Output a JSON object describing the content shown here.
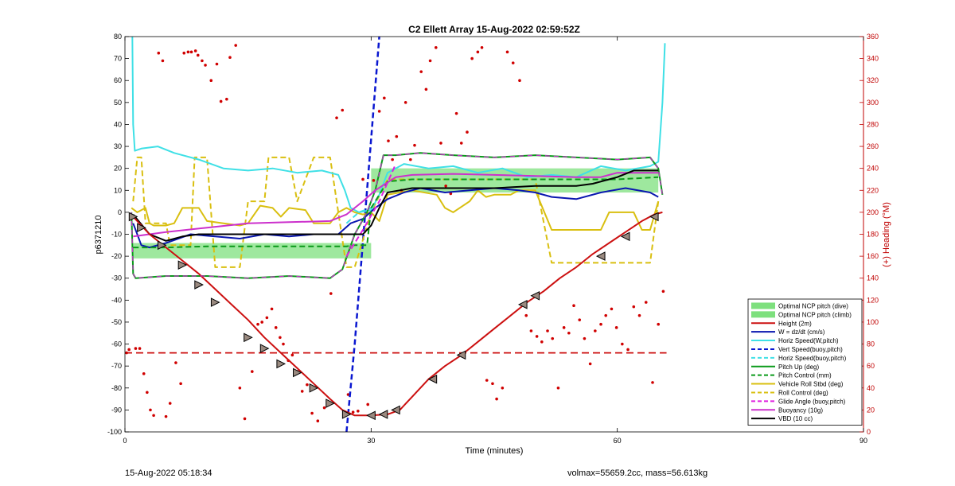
{
  "footer": {
    "left": "15-Aug-2022 05:18:34",
    "right": "volmax=55659.2cc, mass=56.613kg"
  },
  "chart_data": {
    "type": "line",
    "title": "C2 Ellett Array 15-Aug-2022 02:59:52Z",
    "xlabel": "Time (minutes)",
    "ylabel": "p6371210",
    "y2label": "(+) Heading (°M)",
    "xlim": [
      0,
      90
    ],
    "ylim": [
      -100,
      80
    ],
    "y2lim": [
      0,
      360
    ],
    "xticks": [
      0,
      30,
      60,
      90
    ],
    "yticks": [
      -100,
      -90,
      -80,
      -70,
      -60,
      -50,
      -40,
      -30,
      -20,
      -10,
      0,
      10,
      20,
      30,
      40,
      50,
      60,
      70,
      80
    ],
    "y2ticks": [
      0,
      20,
      40,
      60,
      80,
      100,
      120,
      140,
      160,
      180,
      200,
      220,
      240,
      260,
      280,
      300,
      320,
      340,
      360
    ],
    "grid": false,
    "legend_position": "bottom-right",
    "colors": {
      "axis_right": "#c00000",
      "heading_dots": "#d00000",
      "ncp_band": "#7ee07e",
      "height": "#cc1010",
      "w": "#0a17b0",
      "horiz_speed": "#3fe0e6",
      "vert_speed_buoy": "#0a17d0",
      "pitch_up": "#0a9a1a",
      "roll": "#d9bf10",
      "glide": "#e020e0",
      "buoyancy": "#cc30cc",
      "vbd": "#000000"
    },
    "series": [
      {
        "name": "Optimal NCP pitch (dive)",
        "kind": "band",
        "color": "#7ee07e",
        "x": [
          1,
          30
        ],
        "y_low": -21,
        "y_high": -14
      },
      {
        "name": "Optimal NCP pitch (climb)",
        "kind": "band",
        "color": "#7ee07e",
        "x": [
          30,
          65
        ],
        "y_low": 9,
        "y_high": 20
      },
      {
        "name": "Height (2m)",
        "style": "solid",
        "color": "#cc1010",
        "width": 2,
        "x": [
          1,
          3,
          5,
          7,
          9,
          11,
          13,
          15,
          17,
          19,
          21,
          23,
          25,
          26.5,
          28,
          30,
          32,
          33.5,
          35,
          37,
          39,
          41,
          43,
          45,
          47,
          49,
          51,
          53,
          55,
          57,
          59,
          61,
          63,
          64.5,
          65.5
        ],
        "y": [
          -2,
          -10,
          -16,
          -22,
          -28,
          -35,
          -42,
          -49,
          -57,
          -64,
          -71,
          -78,
          -85,
          -90,
          -92.5,
          -92.5,
          -92,
          -90,
          -84,
          -76,
          -70,
          -65,
          -59,
          -53,
          -47,
          -41,
          -36,
          -30,
          -25,
          -19,
          -14,
          -9,
          -4,
          -1,
          0
        ]
      },
      {
        "name": "W = dz/dt (cm/s)",
        "style": "solid",
        "color": "#0a17b0",
        "width": 2,
        "x": [
          1,
          2,
          3,
          5,
          8,
          11,
          14,
          17,
          20,
          23,
          26,
          27.5,
          29,
          30.5,
          32,
          34,
          36,
          39,
          42,
          45,
          48,
          50,
          52,
          55,
          58,
          61,
          64,
          65
        ],
        "y": [
          -5,
          -15,
          -16,
          -14,
          -10,
          -11,
          -12,
          -10,
          -11,
          -10,
          -10,
          -5,
          -3,
          2,
          6,
          9,
          11,
          9,
          10,
          11,
          10,
          9,
          7,
          6,
          9,
          11,
          9,
          7
        ]
      },
      {
        "name": "Horiz Speed(W,pitch)",
        "style": "solid",
        "color": "#3fe0e6",
        "width": 2,
        "x": [
          0.9,
          1,
          1.2,
          2,
          4,
          6,
          9,
          12,
          15,
          18,
          21,
          24,
          26,
          26.8,
          27.5,
          28.5,
          30,
          31,
          32,
          34,
          37,
          40,
          43,
          46,
          49,
          52,
          55,
          58,
          61,
          64,
          65,
          65.5,
          65.8
        ],
        "y": [
          80,
          40,
          28,
          29,
          30,
          27,
          24,
          20,
          19,
          20,
          18,
          19,
          17,
          10,
          2,
          0,
          1,
          8,
          18,
          22,
          20,
          21,
          18,
          20,
          16,
          17,
          16,
          21,
          19,
          21,
          23,
          50,
          77
        ]
      },
      {
        "name": "Vert Speed(buoy,pitch)",
        "style": "dashed",
        "color": "#0a17d0",
        "width": 2.5,
        "x": [
          27,
          28,
          29.5,
          31
        ],
        "y": [
          -100,
          -60,
          10,
          80
        ]
      },
      {
        "name": "Horiz Speed(buoy,pitch)",
        "style": "dashed",
        "color": "#3fe0e6",
        "width": 2,
        "x": [
          27,
          28.5,
          30
        ],
        "y": [
          -5,
          0,
          2
        ]
      },
      {
        "name": "Pitch Up (deg)",
        "style": "solid",
        "color": "#0a9a1a",
        "width": 2,
        "x": [
          0.8,
          1,
          1.3,
          5,
          10,
          15,
          20,
          25,
          26.5,
          28,
          29.5,
          30.5,
          31.5,
          33,
          36,
          40,
          45,
          50,
          55,
          60,
          64,
          65,
          65.5
        ],
        "y": [
          0,
          -28,
          -30,
          -29,
          -29,
          -30,
          -29,
          -30,
          -26,
          -10,
          0,
          10,
          26,
          26,
          27,
          26,
          25,
          26,
          25,
          24,
          25,
          20,
          8
        ]
      },
      {
        "name": "Pitch Control (mm)",
        "style": "dashed",
        "color": "#0a9a1a",
        "width": 2,
        "x": [
          1,
          5,
          10,
          15,
          20,
          25,
          27,
          28,
          29.5,
          30,
          32,
          35,
          40,
          45,
          50,
          55,
          60,
          65
        ],
        "y": [
          -16,
          -16,
          -15.5,
          -15.5,
          -15.5,
          -15.5,
          -15.5,
          -15,
          -15,
          2,
          14,
          15,
          15,
          15,
          15,
          15,
          15,
          16
        ]
      },
      {
        "name": "Vehicle Roll Stbd (deg)",
        "style": "solid",
        "color": "#d9bf10",
        "width": 2,
        "x": [
          0.8,
          1.5,
          2.5,
          3,
          3.5,
          5,
          6,
          7,
          9,
          10,
          12,
          14,
          15,
          16.5,
          18,
          19,
          20,
          22,
          23,
          25,
          26,
          27,
          28,
          29,
          30,
          31,
          32,
          35,
          38,
          39,
          40,
          42,
          43,
          44,
          45,
          47,
          48,
          50,
          52,
          55,
          58,
          59,
          60,
          62,
          63,
          64,
          65
        ],
        "y": [
          2,
          0,
          2,
          -5,
          -6,
          -6,
          -5,
          2,
          2,
          -4,
          -5,
          -6,
          -5,
          3,
          2,
          -2,
          2,
          1,
          -5,
          -5,
          0,
          2,
          0,
          -1,
          0,
          -4,
          8,
          10,
          8,
          2,
          0,
          5,
          10,
          7,
          8,
          8,
          10,
          10,
          -8,
          -8,
          -8,
          0,
          0,
          0,
          -8,
          -8,
          5
        ]
      },
      {
        "name": "Roll Control (deg)",
        "style": "dashed",
        "color": "#d9bf10",
        "width": 2,
        "x": [
          1,
          1.5,
          2,
          2.5,
          3,
          5,
          5.5,
          8,
          8.5,
          10,
          11,
          14,
          15,
          17,
          17.5,
          20,
          21,
          23,
          25,
          26,
          27,
          28,
          30,
          32,
          34,
          36,
          38,
          40,
          42,
          44,
          46,
          48,
          50,
          52,
          54,
          56,
          58,
          60,
          62,
          64,
          65
        ],
        "y": [
          5,
          25,
          25,
          -5,
          -5,
          -5,
          -15,
          -15,
          25,
          25,
          -25,
          -25,
          5,
          5,
          25,
          25,
          5,
          25,
          25,
          0,
          -25,
          -25,
          0,
          15,
          15,
          15,
          15,
          15,
          15,
          15,
          15,
          15,
          15,
          -23,
          -23,
          -23,
          -23,
          -23,
          -23,
          -23,
          5
        ]
      },
      {
        "name": "Glide Angle (buoy,pitch)",
        "style": "dashed",
        "color": "#e020e0",
        "width": 2,
        "x": [
          27,
          29,
          31,
          33
        ],
        "y": [
          -20,
          -8,
          5,
          22
        ]
      },
      {
        "name": "Buoyancy (10g)",
        "style": "solid",
        "color": "#cc30cc",
        "width": 2,
        "x": [
          1,
          5,
          10,
          15,
          20,
          25,
          27,
          29,
          30.5,
          33,
          35,
          40,
          45,
          50,
          55,
          58,
          60,
          65
        ],
        "y": [
          -11,
          -9,
          -7,
          -5,
          -4.5,
          -4,
          -1,
          5,
          10,
          16,
          17,
          17.5,
          17,
          16.5,
          16,
          16,
          18,
          18
        ]
      },
      {
        "name": "VBD (10 cc)",
        "style": "solid",
        "color": "#000000",
        "width": 2,
        "x": [
          1,
          3,
          5,
          7,
          9,
          12,
          15,
          20,
          25,
          27,
          29,
          30,
          31,
          32,
          35,
          40,
          45,
          50,
          55,
          57,
          59,
          60,
          62,
          65
        ],
        "y": [
          -1,
          -10,
          -13,
          -11,
          -10,
          -10,
          -10,
          -10,
          -10,
          -10,
          -10,
          -6,
          2,
          9,
          11,
          11,
          11,
          12,
          12,
          13,
          15,
          16,
          19,
          19
        ]
      }
    ],
    "height_markers": {
      "x": [
        1,
        2,
        4.5,
        7,
        9,
        11,
        15,
        17,
        19,
        21,
        23,
        25,
        27,
        30,
        31.5,
        33,
        37.5,
        41,
        48.5,
        50,
        58,
        61,
        64.5
      ],
      "y": [
        -2,
        -7,
        -15,
        -24,
        -33,
        -41,
        -57,
        -62,
        -69,
        -73,
        -80,
        -87,
        -92,
        -92.5,
        -92,
        -90,
        -76,
        -65,
        -42,
        -38,
        -20,
        -11,
        -2
      ],
      "direction": [
        "down",
        "down",
        "down",
        "down",
        "down",
        "down",
        "down",
        "down",
        "down",
        "down",
        "down",
        "down",
        "down",
        "up",
        "up",
        "up",
        "up",
        "up",
        "up",
        "up",
        "up",
        "up",
        "up"
      ]
    },
    "heading_reference": {
      "name": "",
      "style": "dashed",
      "color": "#cc1010",
      "y2": 72,
      "x": [
        0,
        66
      ]
    },
    "heading_points": {
      "axis": "y2",
      "x": [
        0.2,
        0.5,
        1.3,
        1.8,
        2.3,
        2.7,
        3.1,
        3.5,
        4.1,
        4.6,
        5.0,
        5.5,
        6.2,
        6.8,
        7.2,
        7.7,
        8.1,
        8.6,
        8.9,
        9.4,
        9.8,
        10.5,
        11.2,
        11.7,
        12.4,
        12.8,
        13.5,
        14.0,
        14.6,
        15.5,
        16.2,
        16.7,
        17.3,
        17.9,
        18.4,
        18.9,
        19.3,
        19.9,
        20.4,
        21.0,
        21.6,
        22.2,
        22.8,
        23.5,
        24.3,
        25.1,
        25.8,
        26.5,
        27.2,
        27.8,
        28.4,
        29.0,
        29.6,
        30.3,
        31.0,
        31.6,
        32.1,
        32.6,
        33.1,
        33.7,
        34.2,
        34.8,
        35.3,
        36.1,
        36.7,
        37.2,
        37.9,
        38.5,
        39.1,
        39.7,
        40.4,
        41.0,
        41.7,
        42.3,
        43.0,
        43.5,
        44.1,
        44.8,
        45.3,
        46.0,
        46.6,
        47.3,
        48.1,
        48.9,
        49.5,
        50.2,
        50.8,
        51.5,
        52.1,
        52.8,
        53.5,
        54.1,
        54.7,
        55.4,
        56.0,
        56.7,
        57.3,
        58.0,
        58.6,
        59.3,
        59.9,
        60.6,
        61.3,
        62.0,
        62.7,
        63.5,
        64.3,
        65.0,
        65.6
      ],
      "y2": [
        72,
        75,
        76,
        76,
        53,
        36,
        20,
        15,
        345,
        338,
        14,
        26,
        63,
        44,
        345,
        346,
        346,
        347,
        343,
        338,
        334,
        320,
        335,
        301,
        303,
        341,
        352,
        40,
        12,
        55,
        98,
        100,
        104,
        112,
        95,
        86,
        80,
        65,
        70,
        55,
        37,
        43,
        17,
        10,
        22,
        126,
        286,
        293,
        34,
        18,
        19,
        230,
        25,
        229,
        292,
        304,
        265,
        248,
        269,
        220,
        300,
        248,
        261,
        328,
        312,
        338,
        350,
        263,
        224,
        217,
        290,
        263,
        273,
        340,
        346,
        350,
        47,
        44,
        30,
        40,
        346,
        336,
        320,
        106,
        92,
        87,
        82,
        92,
        85,
        40,
        95,
        90,
        115,
        102,
        85,
        62,
        92,
        98,
        106,
        112,
        95,
        80,
        75,
        114,
        106,
        118,
        45,
        98,
        128
      ]
    }
  }
}
